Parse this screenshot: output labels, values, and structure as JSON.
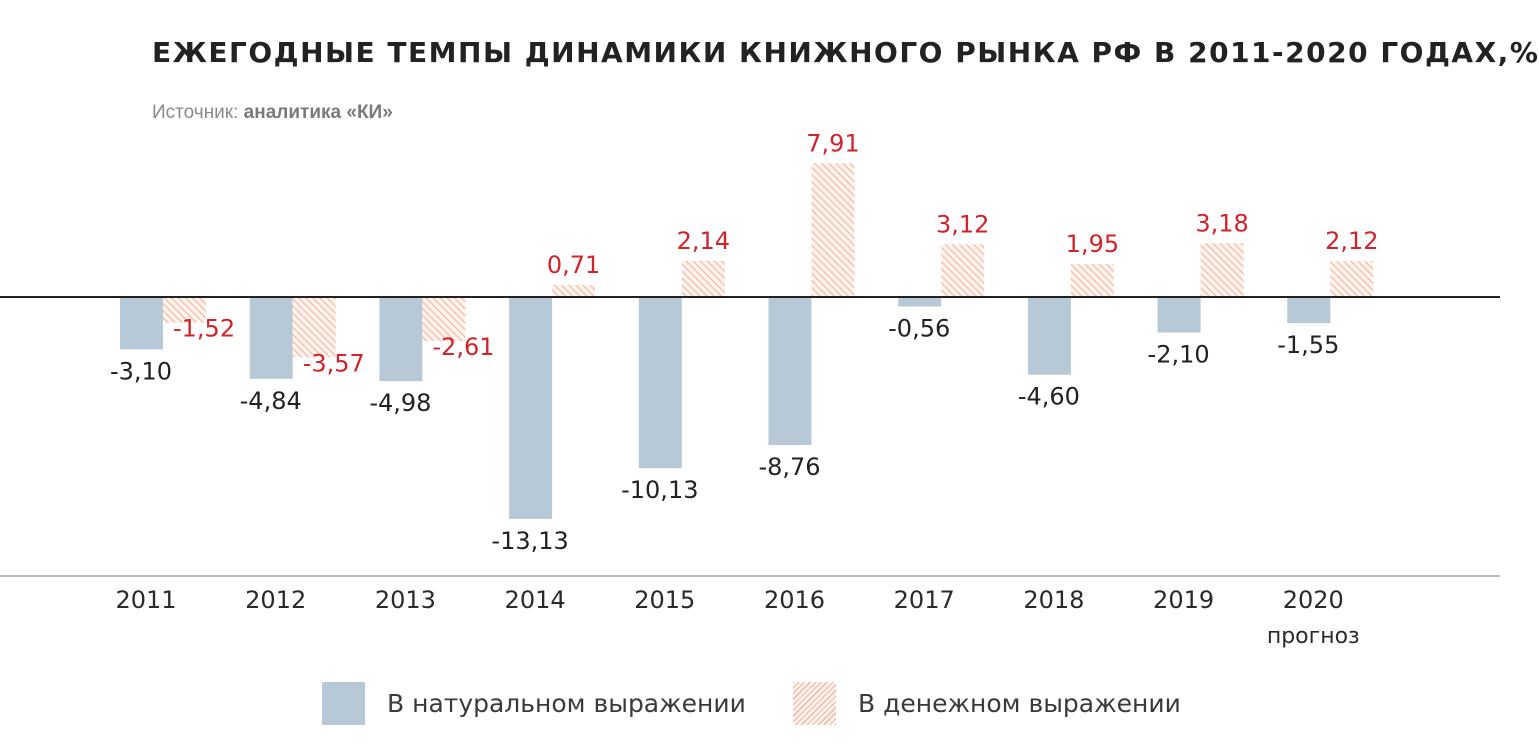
{
  "header": {
    "title": "ЕЖЕГОДНЫЕ ТЕМПЫ ДИНАМИКИ КНИЖНОГО РЫНКА РФ В 2011-2020 ГОДАХ,%",
    "source_prefix": "Источник:",
    "source_name": "аналитика «КИ»"
  },
  "colors": {
    "natural": "#b7c8d6",
    "monetary_stroke": "#f2b59e",
    "monetary_fill": "#fff3ee",
    "monetary_label": "#d2232a",
    "natural_label": "#222222"
  },
  "chart_data": {
    "type": "bar",
    "title": "ЕЖЕГОДНЫЕ ТЕМПЫ ДИНАМИКИ КНИЖНОГО РЫНКА РФ В 2011-2020 ГОДАХ,%",
    "categories": [
      "2011",
      "2012",
      "2013",
      "2014",
      "2015",
      "2016",
      "2017",
      "2018",
      "2019",
      "2020"
    ],
    "category_notes": [
      "",
      "",
      "",
      "",
      "",
      "",
      "",
      "",
      "",
      "прогноз"
    ],
    "series": [
      {
        "name": "В натуральном выражении",
        "values": [
          -3.1,
          -4.84,
          -4.98,
          -13.13,
          -10.13,
          -8.76,
          -0.56,
          -4.6,
          -2.1,
          -1.55
        ],
        "labels": [
          "-3,10",
          "-4,84",
          "-4,98",
          "-13,13",
          "-10,13",
          "-8,76",
          "-0,56",
          "-4,60",
          "-2,10",
          "-1,55"
        ]
      },
      {
        "name": "В денежном выражении",
        "values": [
          -1.52,
          -3.57,
          -2.61,
          0.71,
          2.14,
          7.91,
          3.12,
          1.95,
          3.18,
          2.12
        ],
        "labels": [
          "-1,52",
          "-3,57",
          "-2,61",
          "0,71",
          "2,14",
          "7,91",
          "3,12",
          "1,95",
          "3,18",
          "2,12"
        ]
      }
    ],
    "xlabel": "",
    "ylabel": "",
    "grid": false,
    "legend": "bottom"
  }
}
